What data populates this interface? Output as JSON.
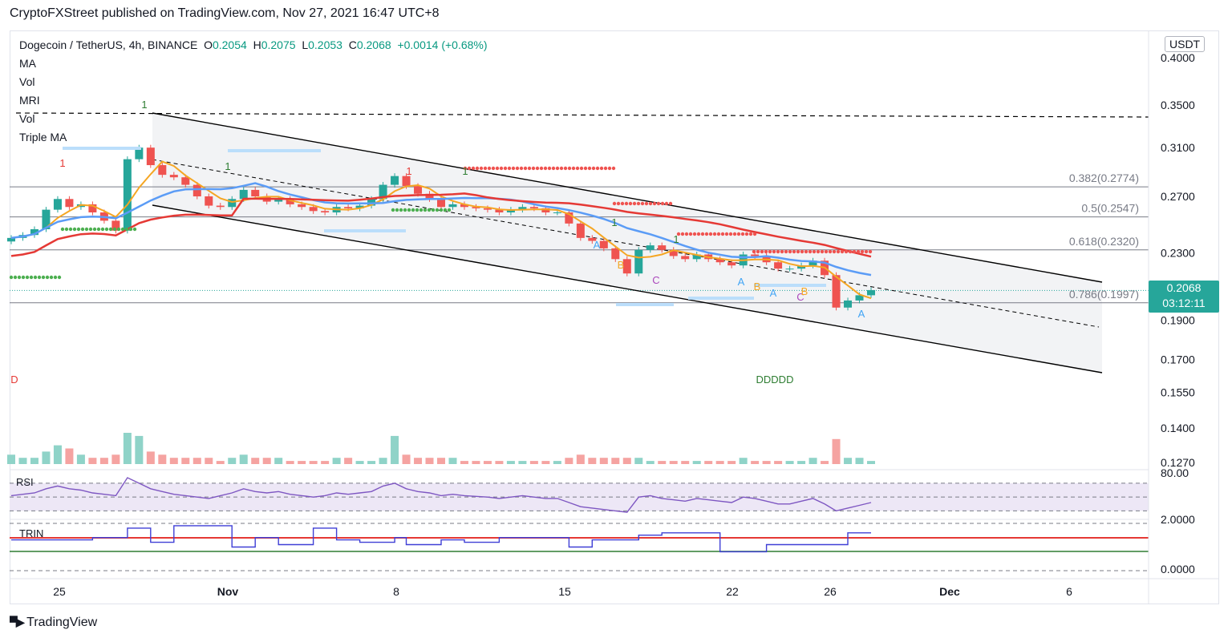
{
  "header": {
    "publisher_line": "CryptoFXStreet published on TradingView.com, Nov 27, 2021 16:47 UTC+8"
  },
  "legend": {
    "symbol": "Dogecoin / TetherUS, 4h, BINANCE",
    "o_key": "O",
    "o_val": "0.2054",
    "h_key": "H",
    "h_val": "0.2075",
    "l_key": "L",
    "l_val": "0.2053",
    "c_key": "C",
    "c_val": "0.2068",
    "change": "+0.0014 (+0.68%)",
    "indicators": [
      "MA",
      "Vol",
      "MRI",
      "Vol",
      "Triple MA"
    ]
  },
  "currency": "USDT",
  "price_tag": {
    "price": "0.2068",
    "countdown": "03:12:11"
  },
  "colors": {
    "up": "#26a69a",
    "down": "#ef5350",
    "ma_orange": "#f5a623",
    "ma_blue": "#5b9cf6",
    "ma_red": "#e53935",
    "rsi": "#7e57c2",
    "trin": "#3f3fd6",
    "trin_red": "#e53935",
    "trin_green": "#2e7d32"
  },
  "chart_data": [
    {
      "type": "line",
      "title": "Dogecoin / TetherUS, 4h, BINANCE",
      "x_ticks": [
        "25",
        "Nov",
        "8",
        "15",
        "22",
        "26",
        "Dec",
        "6"
      ],
      "y_ticks": [
        "0.4000",
        "0.3500",
        "0.3100",
        "0.2700",
        "0.2300",
        "0.1900",
        "0.1700",
        "0.1550",
        "0.1400",
        "0.1270"
      ],
      "y_scale": "log",
      "ylim": [
        0.126,
        0.41
      ],
      "fib_levels": [
        {
          "label": "0.382(0.2774)",
          "value": 0.2774
        },
        {
          "label": "0.5(0.2547)",
          "value": 0.2547
        },
        {
          "label": "0.618(0.2320)",
          "value": 0.232
        },
        {
          "label": "0.786(0.1997)",
          "value": 0.1997
        }
      ],
      "series": [
        {
          "name": "close",
          "values": [
            0.24,
            0.242,
            0.246,
            0.26,
            0.268,
            0.262,
            0.264,
            0.258,
            0.252,
            0.245,
            0.3,
            0.31,
            0.295,
            0.287,
            0.285,
            0.279,
            0.27,
            0.263,
            0.262,
            0.268,
            0.275,
            0.27,
            0.266,
            0.268,
            0.264,
            0.262,
            0.259,
            0.258,
            0.262,
            0.261,
            0.263,
            0.268,
            0.279,
            0.286,
            0.278,
            0.272,
            0.268,
            0.262,
            0.264,
            0.262,
            0.261,
            0.26,
            0.258,
            0.26,
            0.262,
            0.261,
            0.258,
            0.258,
            0.25,
            0.24,
            0.238,
            0.233,
            0.226,
            0.217,
            0.232,
            0.235,
            0.232,
            0.228,
            0.226,
            0.229,
            0.226,
            0.224,
            0.222,
            0.229,
            0.228,
            0.224,
            0.22,
            0.22,
            0.222,
            0.225,
            0.216,
            0.197,
            0.201,
            0.204,
            0.207
          ]
        }
      ],
      "annotations": [
        "1",
        "1",
        "1",
        "1",
        "1",
        "1",
        "1",
        "A",
        "B",
        "C",
        "A",
        "B",
        "A",
        "C",
        "B",
        "A",
        "D",
        "DDDDD"
      ]
    },
    {
      "type": "bar",
      "title": "Vol",
      "values": [
        3,
        2,
        2,
        4,
        6,
        5,
        3,
        2,
        2,
        3,
        10,
        9,
        4,
        3,
        2,
        2,
        2,
        2,
        1,
        2,
        3,
        2,
        2,
        2,
        1,
        1,
        1,
        1,
        2,
        2,
        1,
        1,
        2,
        9,
        3,
        2,
        2,
        2,
        2,
        1,
        1,
        1,
        1,
        1,
        1,
        1,
        1,
        1,
        2,
        3,
        2,
        2,
        2,
        2,
        2,
        1,
        1,
        1,
        1,
        1,
        1,
        1,
        1,
        2,
        1,
        1,
        1,
        1,
        1,
        2,
        1,
        8,
        2,
        2,
        1
      ]
    },
    {
      "type": "line",
      "title": "RSI",
      "y_ticks": [
        "80.00"
      ],
      "series": [
        {
          "name": "RSI",
          "values": [
            52,
            54,
            56,
            62,
            66,
            62,
            60,
            56,
            54,
            52,
            78,
            70,
            62,
            58,
            54,
            52,
            50,
            48,
            52,
            56,
            62,
            58,
            56,
            58,
            54,
            52,
            50,
            52,
            56,
            54,
            56,
            58,
            66,
            70,
            62,
            58,
            56,
            52,
            54,
            52,
            51,
            50,
            48,
            50,
            52,
            50,
            48,
            48,
            42,
            36,
            34,
            32,
            30,
            28,
            50,
            52,
            48,
            46,
            44,
            48,
            46,
            44,
            42,
            50,
            48,
            44,
            40,
            40,
            44,
            48,
            40,
            30,
            34,
            38,
            42
          ]
        }
      ]
    },
    {
      "type": "line",
      "title": "TRIN",
      "y_ticks": [
        "2.0000",
        "0.0000"
      ],
      "series": [
        {
          "name": "TRIN",
          "values": [
            1.3,
            1.3,
            1.3,
            1.3,
            1.3,
            1.3,
            1.3,
            1.4,
            1.4,
            1.4,
            1.8,
            1.8,
            1.2,
            1.2,
            1.9,
            1.9,
            1.9,
            1.9,
            1.9,
            1.0,
            1.0,
            1.4,
            1.4,
            1.1,
            1.1,
            1.1,
            1.8,
            1.8,
            1.3,
            1.3,
            1.2,
            1.2,
            1.2,
            1.4,
            1.1,
            1.1,
            1.1,
            1.3,
            1.3,
            1.2,
            1.2,
            1.2,
            1.4,
            1.4,
            1.4,
            1.4,
            1.4,
            1.4,
            1.0,
            1.0,
            1.3,
            1.3,
            1.3,
            1.3,
            1.5,
            1.5,
            1.6,
            1.6,
            1.6,
            1.6,
            1.6,
            0.8,
            0.8,
            0.8,
            0.8,
            1.1,
            1.1,
            1.1,
            1.1,
            1.1,
            1.1,
            1.1,
            1.6,
            1.6,
            1.6
          ]
        }
      ]
    }
  ],
  "footer": {
    "brand": "TradingView"
  }
}
